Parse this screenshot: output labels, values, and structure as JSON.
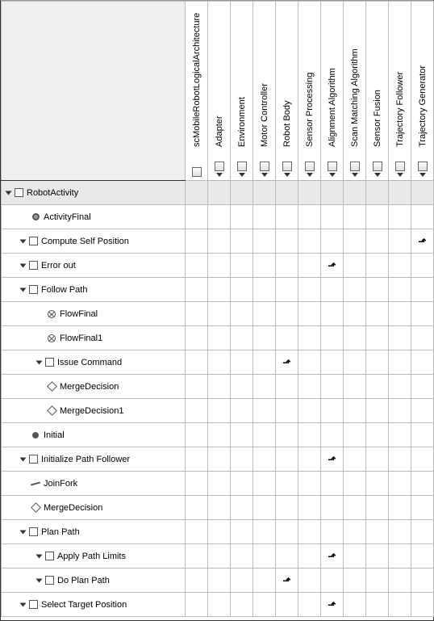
{
  "columns": [
    {
      "label": "scMobileRobotLogicalArchitecture",
      "hasExpand": false
    },
    {
      "label": "Adapter",
      "hasExpand": true
    },
    {
      "label": "Environment",
      "hasExpand": true
    },
    {
      "label": "Motor Controller",
      "hasExpand": true
    },
    {
      "label": "Robot Body",
      "hasExpand": true
    },
    {
      "label": "Sensor Processing",
      "hasExpand": true
    },
    {
      "label": "Alignment Algorithm",
      "hasExpand": true
    },
    {
      "label": "Scan Matching Algorithm",
      "hasExpand": true
    },
    {
      "label": "Sensor Fusion",
      "hasExpand": true
    },
    {
      "label": "Trajectory Follower",
      "hasExpand": true
    },
    {
      "label": "Trajectory Generator",
      "hasExpand": true
    }
  ],
  "rows": [
    {
      "label": "RobotActivity",
      "indent": 0,
      "expand": true,
      "icon": "checkbox",
      "shaded": true,
      "arrows": {}
    },
    {
      "label": "ActivityFinal",
      "indent": 1,
      "expand": false,
      "icon": "bullet",
      "arrows": {}
    },
    {
      "label": "Compute Self Position",
      "indent": 1,
      "expand": true,
      "icon": "checkbox",
      "arrows": {
        "10": true
      }
    },
    {
      "label": "Error out",
      "indent": 1,
      "expand": true,
      "icon": "checkbox",
      "arrows": {
        "6": true
      }
    },
    {
      "label": "Follow Path",
      "indent": 1,
      "expand": true,
      "icon": "checkbox",
      "arrows": {}
    },
    {
      "label": "FlowFinal",
      "indent": 2,
      "expand": false,
      "icon": "circlex",
      "arrows": {}
    },
    {
      "label": "FlowFinal1",
      "indent": 2,
      "expand": false,
      "icon": "circlex",
      "arrows": {}
    },
    {
      "label": "Issue Command",
      "indent": 2,
      "expand": true,
      "icon": "checkbox",
      "arrows": {
        "4": true
      }
    },
    {
      "label": "MergeDecision",
      "indent": 2,
      "expand": false,
      "icon": "diamond",
      "arrows": {}
    },
    {
      "label": "MergeDecision1",
      "indent": 2,
      "expand": false,
      "icon": "diamond",
      "arrows": {}
    },
    {
      "label": "Initial",
      "indent": 1,
      "expand": false,
      "icon": "dot",
      "arrows": {}
    },
    {
      "label": "Initialize Path Follower",
      "indent": 1,
      "expand": true,
      "icon": "checkbox",
      "arrows": {
        "6": true
      }
    },
    {
      "label": "JoinFork",
      "indent": 1,
      "expand": false,
      "icon": "line",
      "arrows": {}
    },
    {
      "label": "MergeDecision",
      "indent": 1,
      "expand": false,
      "icon": "diamond",
      "arrows": {}
    },
    {
      "label": "Plan Path",
      "indent": 1,
      "expand": true,
      "icon": "checkbox",
      "arrows": {}
    },
    {
      "label": "Apply Path Limits",
      "indent": 2,
      "expand": true,
      "icon": "checkbox",
      "arrows": {
        "6": true
      }
    },
    {
      "label": "Do Plan Path",
      "indent": 2,
      "expand": true,
      "icon": "checkbox",
      "arrows": {
        "4": true
      }
    },
    {
      "label": "Select Target Position",
      "indent": 1,
      "expand": true,
      "icon": "checkbox",
      "arrows": {
        "6": true
      }
    }
  ],
  "colors": {
    "border": "#bbbbbb",
    "shaded": "#e8e8e8",
    "headerBg": "#f0f0f0"
  }
}
